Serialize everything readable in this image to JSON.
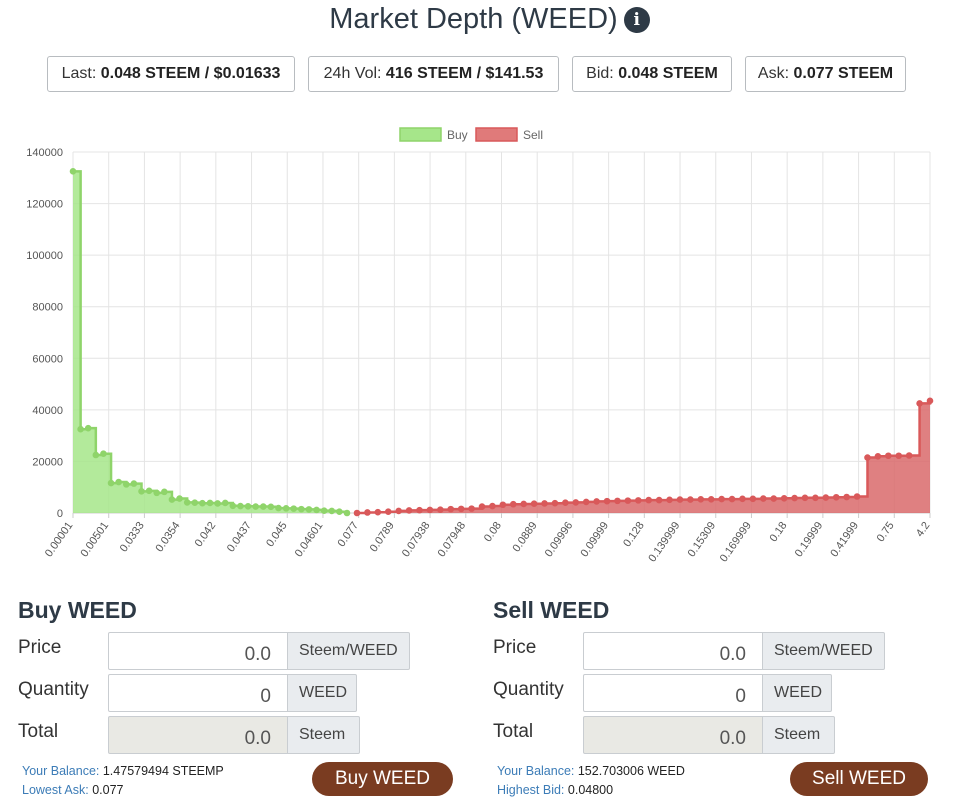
{
  "header": {
    "title": "Market Depth (WEED)",
    "info_icon": "info-circle-icon"
  },
  "stats": {
    "last_label": "Last:",
    "last_value": "0.048 STEEM / $0.01633",
    "vol_label": "24h Vol:",
    "vol_value": "416 STEEM / $141.53",
    "bid_label": "Bid:",
    "bid_value": "0.048 STEEM",
    "ask_label": "Ask:",
    "ask_value": "0.077 STEEM"
  },
  "chart_data": {
    "type": "area",
    "legend_position": "top-center",
    "grid": true,
    "ylim": [
      0,
      140000
    ],
    "yticks": [
      "0",
      "20000",
      "40000",
      "60000",
      "80000",
      "100000",
      "120000",
      "140000"
    ],
    "x_tick_labels": [
      "0.00001",
      "0.00501",
      "0.0333",
      "0.0354",
      "0.042",
      "0.0437",
      "0.045",
      "0.04601",
      "0.077",
      "0.0789",
      "0.07938",
      "0.07948",
      "0.08",
      "0.0889",
      "0.09996",
      "0.09999",
      "0.128",
      "0.139999",
      "0.15309",
      "0.169999",
      "0.18",
      "0.19999",
      "0.41999",
      "0.75",
      "4.2"
    ],
    "series": [
      {
        "name": "Buy",
        "color": "#8fd46a",
        "values": [
          132500,
          32500,
          32900,
          22500,
          23000,
          11600,
          12000,
          11100,
          11400,
          8400,
          8600,
          7800,
          8200,
          5200,
          5600,
          4100,
          4000,
          3800,
          3900,
          3700,
          3900,
          2800,
          2700,
          2600,
          2500,
          2500,
          2400,
          1900,
          1800,
          1700,
          1500,
          1400,
          1200,
          900,
          800,
          500,
          0
        ]
      },
      {
        "name": "Sell",
        "color": "#d9595a",
        "values": [
          0,
          0,
          0,
          0,
          0,
          0,
          0,
          0,
          0,
          0,
          0,
          0,
          0,
          0,
          0,
          0,
          0,
          0,
          0,
          0,
          0,
          0,
          0,
          0,
          0,
          0,
          0,
          0,
          0,
          0,
          0,
          0,
          0,
          0,
          0,
          0,
          0,
          200,
          300,
          500,
          800,
          1000,
          1100,
          1200,
          1300,
          1500,
          1600,
          1700,
          2500,
          2700,
          3200,
          3400,
          3500,
          3600,
          3700,
          3800,
          4000,
          4100,
          4300,
          4500,
          4600,
          4700,
          4800,
          4900,
          5000,
          5000,
          5100,
          5200,
          5200,
          5300,
          5300,
          5400,
          5400,
          5500,
          5500,
          5600,
          5600,
          5700,
          5800,
          5900,
          5900,
          6000,
          6100,
          6200,
          6400,
          21500,
          22000,
          22200,
          22200,
          22300,
          42500,
          43500
        ]
      }
    ]
  },
  "buy": {
    "title": "Buy WEED",
    "price_label": "Price",
    "price_value": "0.0",
    "price_unit": "Steem/WEED",
    "qty_label": "Quantity",
    "qty_value": "0",
    "qty_unit": "WEED",
    "total_label": "Total",
    "total_value": "0.0",
    "total_unit": "Steem",
    "balance_label": "Your Balance:",
    "balance_value": "1.47579494 STEEMP",
    "ref_label": "Lowest Ask:",
    "ref_value": "0.077",
    "button": "Buy WEED"
  },
  "sell": {
    "title": "Sell WEED",
    "price_label": "Price",
    "price_value": "0.0",
    "price_unit": "Steem/WEED",
    "qty_label": "Quantity",
    "qty_value": "0",
    "qty_unit": "WEED",
    "total_label": "Total",
    "total_value": "0.0",
    "total_unit": "Steem",
    "balance_label": "Your Balance:",
    "balance_value": "152.703006 WEED",
    "ref_label": "Highest Bid:",
    "ref_value": "0.04800",
    "button": "Sell WEED"
  },
  "colors": {
    "accent": "#7a3c21",
    "heading": "#2e3a46",
    "link": "#3c7cb7"
  }
}
